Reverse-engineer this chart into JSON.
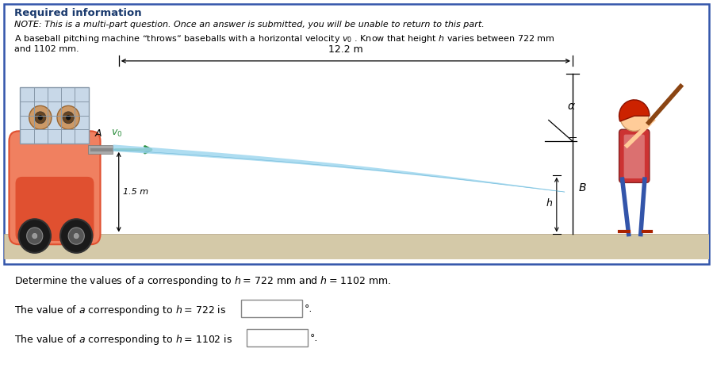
{
  "background_color": "#ffffff",
  "border_color": "#3355aa",
  "header_color": "#1a3a6e",
  "header_text": "Required information",
  "note_text": "NOTE: This is a multi-part question. Once an answer is submitted, you will be unable to return to this part.",
  "desc_line1": "A baseball pitching machine “throws” baseballs with a horizontal velocity $v_0$ . Know that height $h$ varies between 722 mm",
  "desc_line2": "and 1102 mm.",
  "question_text": "Determine the values of $a$ corresponding to $h$ = 722 mm and $h$ = 1102 mm.",
  "answer_text1": "The value of $a$ corresponding to $h$ = 722 is",
  "answer_text2": "The value of $a$ corresponding to $h$ = 1102 is",
  "degree_symbol": "°.",
  "label_12m": "12.2 m",
  "label_15m": "1.5 m",
  "label_A": "A",
  "label_v0": "$v_0$",
  "label_alpha": "$\\alpha$",
  "label_h": "$h$",
  "label_B": "B",
  "ground_color": "#d4c9a8",
  "machine_body_color": "#e05030",
  "machine_body_color2": "#f08060",
  "wheel_color": "#222222",
  "basket_color": "#aabbcc",
  "eye_color": "#997755",
  "arrow_green": "#228833",
  "traj_color": "#a0d8ef",
  "text_color": "#000000",
  "figure_width": 8.99,
  "figure_height": 4.78,
  "dpi": 100
}
